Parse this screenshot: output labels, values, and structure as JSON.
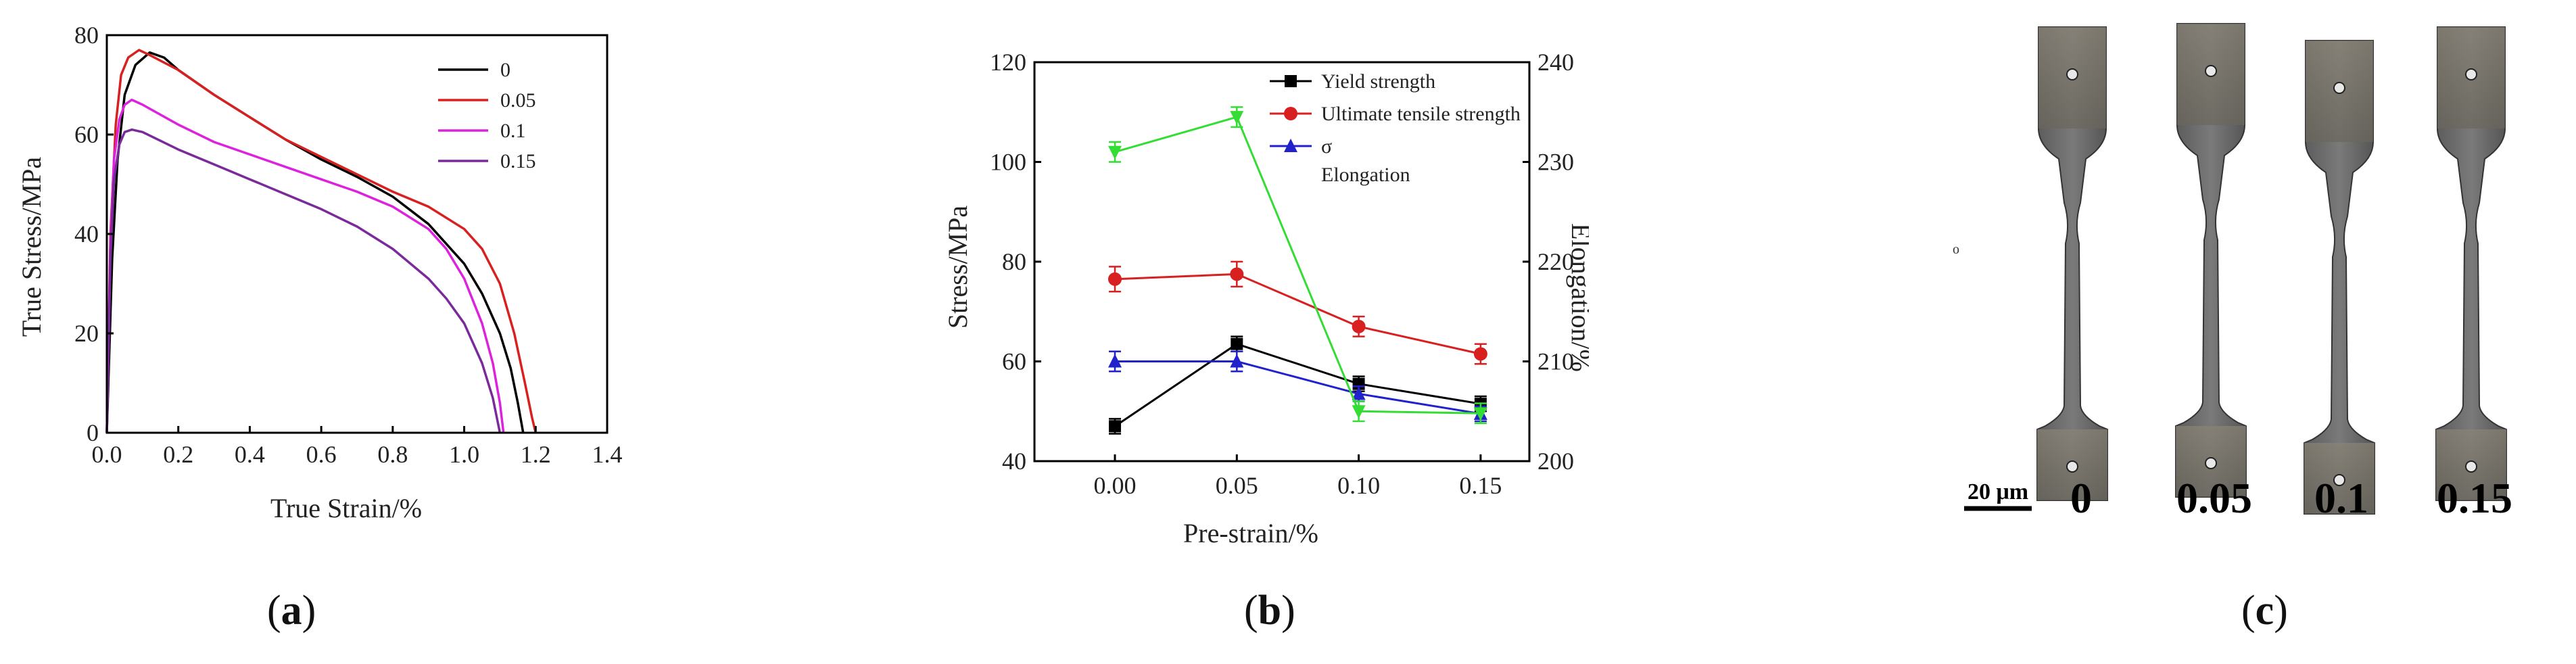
{
  "captions": {
    "a": "a",
    "b": "b",
    "c": "c"
  },
  "chart_data": [
    {
      "id": "a",
      "type": "line",
      "title": "",
      "xlabel": "True Strain/%",
      "ylabel": "True Stress/MPa",
      "xlim": [
        0,
        1.4
      ],
      "ylim": [
        0,
        80
      ],
      "xticks": [
        0.0,
        0.2,
        0.4,
        0.6,
        0.8,
        1.0,
        1.2,
        1.4
      ],
      "xtick_labels": [
        "0.0",
        "0.2",
        "0.4",
        "0.6",
        "0.8",
        "1.0",
        "1.2",
        "1.4"
      ],
      "yticks": [
        0,
        20,
        40,
        60,
        80
      ],
      "ytick_labels": [
        "0",
        "20",
        "40",
        "60",
        "80"
      ],
      "grid": false,
      "legend": "top-right",
      "series": [
        {
          "name": "0",
          "color": "#000000",
          "x": [
            0,
            0.015,
            0.03,
            0.05,
            0.08,
            0.12,
            0.16,
            0.2,
            0.3,
            0.4,
            0.5,
            0.6,
            0.7,
            0.8,
            0.9,
            1.0,
            1.05,
            1.1,
            1.13,
            1.15,
            1.165
          ],
          "y": [
            0,
            35,
            55,
            68,
            74,
            76.5,
            75.5,
            73,
            68,
            63.5,
            59,
            55,
            51.5,
            47.5,
            42,
            34,
            28,
            20,
            13,
            6,
            0
          ]
        },
        {
          "name": "0.05",
          "color": "#d92020",
          "x": [
            0,
            0.01,
            0.025,
            0.04,
            0.06,
            0.09,
            0.12,
            0.2,
            0.3,
            0.4,
            0.5,
            0.6,
            0.7,
            0.8,
            0.9,
            1.0,
            1.05,
            1.1,
            1.14,
            1.17,
            1.19,
            1.2
          ],
          "y": [
            0,
            40,
            62,
            72,
            75.5,
            77,
            76,
            73,
            68,
            63.5,
            59,
            55.5,
            52,
            48.5,
            45.5,
            41,
            37,
            30,
            20,
            10,
            3,
            0
          ]
        },
        {
          "name": "0.1",
          "color": "#dd22dd",
          "x": [
            0,
            0.01,
            0.02,
            0.035,
            0.05,
            0.07,
            0.1,
            0.2,
            0.3,
            0.4,
            0.5,
            0.6,
            0.7,
            0.8,
            0.9,
            0.95,
            1.0,
            1.05,
            1.08,
            1.1,
            1.11
          ],
          "y": [
            0,
            38,
            55,
            63,
            66,
            67,
            66,
            62,
            58.5,
            56,
            53.5,
            51,
            48.5,
            45.5,
            41,
            37,
            31,
            22,
            14,
            6,
            0
          ]
        },
        {
          "name": "0.15",
          "color": "#7a2a9a",
          "x": [
            0,
            0.01,
            0.02,
            0.035,
            0.05,
            0.07,
            0.1,
            0.2,
            0.3,
            0.4,
            0.5,
            0.6,
            0.7,
            0.8,
            0.9,
            0.95,
            1.0,
            1.05,
            1.08,
            1.1
          ],
          "y": [
            0,
            35,
            51,
            58,
            60.5,
            61,
            60.5,
            57,
            54,
            51,
            48,
            45,
            41.5,
            37,
            31,
            27,
            22,
            14,
            7,
            0
          ]
        }
      ]
    },
    {
      "id": "b",
      "type": "line",
      "title": "",
      "xlabel": "Pre-strain/%",
      "ylabel": "Stress/MPa",
      "y2label": "Elongation/%",
      "x": [
        0.0,
        0.05,
        0.1,
        0.15
      ],
      "xtick_labels": [
        "0.00",
        "0.05",
        "0.10",
        "0.15"
      ],
      "xlim": [
        -0.033,
        0.17
      ],
      "ylim": [
        40,
        120
      ],
      "y2lim": [
        200,
        240
      ],
      "yticks": [
        40,
        60,
        80,
        100,
        120
      ],
      "ytick_labels": [
        "40",
        "60",
        "80",
        "100",
        "120"
      ],
      "y2ticks": [
        200,
        210,
        220,
        230,
        240
      ],
      "y2tick_labels": [
        "200",
        "210",
        "220",
        "230",
        "240"
      ],
      "grid": false,
      "legend": "top-right",
      "series": [
        {
          "name": "Yield strength",
          "marker": "square",
          "color": "#000000",
          "axis": "left",
          "values": [
            47,
            63.5,
            55.5,
            51.5
          ],
          "errors": [
            1.5,
            1.5,
            1.5,
            1.5
          ]
        },
        {
          "name": "Ultimate tensile strength",
          "marker": "circle",
          "color": "#d92020",
          "axis": "left",
          "values": [
            76.5,
            77.5,
            67,
            61.5
          ],
          "errors": [
            2.5,
            2.5,
            2,
            2
          ]
        },
        {
          "name": "σ",
          "marker": "triangle-up",
          "color": "#2222cc",
          "axis": "left",
          "values": [
            60,
            60,
            53.5,
            49.5
          ],
          "errors": [
            2,
            2,
            1.5,
            1.5
          ]
        },
        {
          "name": "Elongation",
          "marker": "triangle-down",
          "color": "#33dd33",
          "axis": "right",
          "values": [
            231,
            234.5,
            205,
            204.8
          ],
          "errors": [
            1,
            1,
            1,
            1
          ]
        }
      ]
    }
  ],
  "panel_c": {
    "scale_bar_label": "20 μm",
    "side_mark": "o",
    "sample_labels": [
      "0",
      "0.05",
      "0.1",
      "0.15"
    ]
  }
}
